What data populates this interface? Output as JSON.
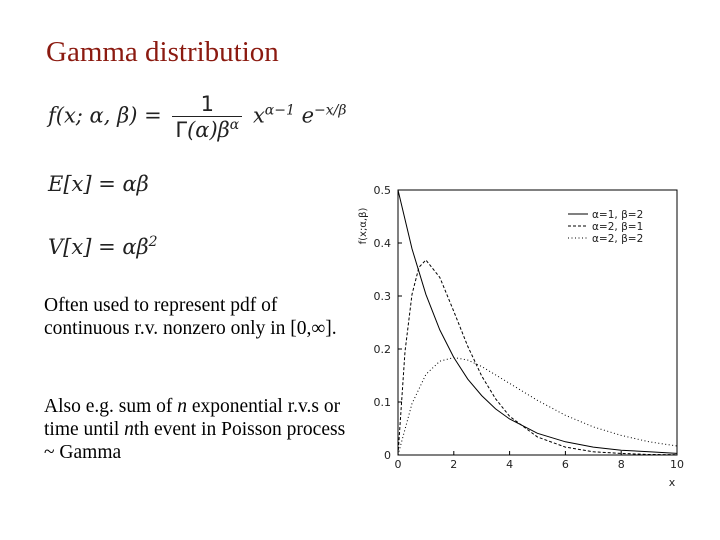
{
  "slide": {
    "title": "Gamma distribution",
    "para1": "Often used to represent pdf of continuous r.v. nonzero only in [0,∞].",
    "para2_a": "Also e.g. sum of ",
    "para2_n1": "n",
    "para2_b": " exponential r.v.s or time until ",
    "para2_n2": "n",
    "para2_c": "th event in Poisson process ~ Gamma"
  },
  "chart_data": {
    "type": "line",
    "xlabel": "x",
    "ylabel": "f(x;α,β)",
    "xlim": [
      0,
      10
    ],
    "ylim": [
      0,
      0.5
    ],
    "xticks": [
      0,
      2,
      4,
      6,
      8,
      10
    ],
    "yticks": [
      0,
      0.1,
      0.2,
      0.3,
      0.4,
      0.5
    ],
    "grid": false,
    "legend_position": "top-right",
    "series": [
      {
        "name": "α=1, β=2",
        "style": "solid",
        "color": "#000000",
        "x": [
          0,
          0.5,
          1,
          1.5,
          2,
          2.5,
          3,
          3.5,
          4,
          5,
          6,
          7,
          8,
          9,
          10
        ],
        "y": [
          0.5,
          0.389,
          0.303,
          0.236,
          0.184,
          0.143,
          0.112,
          0.087,
          0.068,
          0.041,
          0.025,
          0.015,
          0.009,
          0.006,
          0.003
        ]
      },
      {
        "name": "α=2, β=1",
        "style": "dashed",
        "color": "#000000",
        "x": [
          0,
          0.25,
          0.5,
          0.75,
          1,
          1.5,
          2,
          2.5,
          3,
          3.5,
          4,
          5,
          6,
          7,
          8,
          9,
          10
        ],
        "y": [
          0,
          0.195,
          0.303,
          0.354,
          0.368,
          0.335,
          0.271,
          0.205,
          0.149,
          0.106,
          0.073,
          0.034,
          0.015,
          0.006,
          0.003,
          0.001,
          0.0005
        ]
      },
      {
        "name": "α=2, β=2",
        "style": "dotted",
        "color": "#000000",
        "x": [
          0,
          0.5,
          1,
          1.5,
          2,
          2.5,
          3,
          4,
          5,
          6,
          7,
          8,
          9,
          10
        ],
        "y": [
          0,
          0.097,
          0.152,
          0.177,
          0.184,
          0.179,
          0.167,
          0.135,
          0.103,
          0.075,
          0.053,
          0.037,
          0.025,
          0.017
        ]
      }
    ]
  }
}
